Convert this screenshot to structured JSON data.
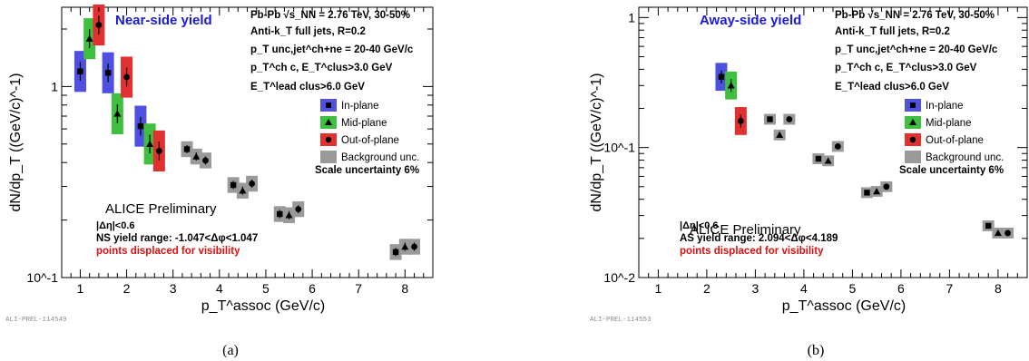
{
  "colors": {
    "in_plane": "#4f4fe0",
    "mid_plane": "#3fbf3f",
    "out_of_plane": "#e03030",
    "background": "#9a9a9a",
    "near_title": "#1a1ad6",
    "away_title": "#1a1ad6",
    "displaced_note": "#e01010"
  },
  "chart_data": [
    {
      "type": "scatter",
      "panel_label": "(a)",
      "title": "Near-side yield",
      "watermark": "ALI-PREL-114549",
      "xlabel": "p_T^assoc (GeV/c)",
      "ylabel": "dN/dp_T ((GeV/c)^-1)",
      "x_range": [
        0.6,
        8.6
      ],
      "y_range": [
        0.1,
        2.6
      ],
      "y_scale": "log",
      "x_ticks": [
        "1",
        "2",
        "3",
        "4",
        "5",
        "6",
        "7",
        "8"
      ],
      "y_ticks": [
        "10^-1",
        "1"
      ],
      "info": {
        "line1": "Pb-Pb √s_NN = 2.76 TeV, 30-50%",
        "line2": "Anti-k_T full jets, R=0.2",
        "line3": "p_T unc,jet^ch+ne = 20-40 GeV/c",
        "line4": "p_T^ch c, E_T^clus>3.0 GeV",
        "line5": "E_T^lead clus>6.0 GeV"
      },
      "legend": [
        "In-plane",
        "Mid-plane",
        "Out-of-plane",
        "Background unc."
      ],
      "scale_uncertainty": "Scale uncertainty 6%",
      "alice_label": "ALICE Preliminary",
      "eta_cut": "|Δη|<0.6",
      "yield_range": "NS yield range: -1.047<Δφ<1.047",
      "displaced_note": "points displaced for visibility",
      "series": [
        {
          "name": "In-plane",
          "x": [
            1.0,
            1.6,
            2.3
          ],
          "y": [
            1.2,
            1.18,
            0.62
          ]
        },
        {
          "name": "Mid-plane",
          "x": [
            1.2,
            1.8,
            2.5
          ],
          "y": [
            1.78,
            0.72,
            0.5
          ]
        },
        {
          "name": "Out-of-plane",
          "x": [
            1.4,
            2.0,
            2.7
          ],
          "y": [
            2.1,
            1.12,
            0.46
          ]
        }
      ],
      "background_points": [
        {
          "x": 3.3,
          "y": 0.47,
          "marker": "square"
        },
        {
          "x": 3.5,
          "y": 0.43,
          "marker": "triangle"
        },
        {
          "x": 3.7,
          "y": 0.41,
          "marker": "circle"
        },
        {
          "x": 4.3,
          "y": 0.305,
          "marker": "square"
        },
        {
          "x": 4.5,
          "y": 0.285,
          "marker": "triangle"
        },
        {
          "x": 4.7,
          "y": 0.31,
          "marker": "circle"
        },
        {
          "x": 5.3,
          "y": 0.215,
          "marker": "square"
        },
        {
          "x": 5.5,
          "y": 0.212,
          "marker": "triangle"
        },
        {
          "x": 5.7,
          "y": 0.228,
          "marker": "circle"
        },
        {
          "x": 7.8,
          "y": 0.136,
          "marker": "square"
        },
        {
          "x": 8.0,
          "y": 0.145,
          "marker": "triangle"
        },
        {
          "x": 8.2,
          "y": 0.145,
          "marker": "circle"
        }
      ]
    },
    {
      "type": "scatter",
      "panel_label": "(b)",
      "title": "Away-side yield",
      "watermark": "ALI-PREL-114553",
      "xlabel": "p_T^assoc (GeV/c)",
      "ylabel": "dN/dp_T ((GeV/c)^-1)",
      "x_range": [
        0.6,
        8.6
      ],
      "y_range": [
        0.01,
        1.2
      ],
      "y_scale": "log",
      "x_ticks": [
        "1",
        "2",
        "3",
        "4",
        "5",
        "6",
        "7",
        "8"
      ],
      "y_ticks": [
        "10^-2",
        "10^-1",
        "1"
      ],
      "info": {
        "line1": "Pb-Pb √s_NN = 2.76 TeV, 30-50%",
        "line2": "Anti-k_T full jets, R=0.2",
        "line3": "p_T unc,jet^ch+ne = 20-40 GeV/c",
        "line4": "p_T^ch c, E_T^clus>3.0 GeV",
        "line5": "E_T^lead clus>6.0 GeV"
      },
      "legend": [
        "In-plane",
        "Mid-plane",
        "Out-of-plane",
        "Background unc."
      ],
      "scale_uncertainty": "Scale uncertainty 6%",
      "alice_label": "ALICE Preliminary",
      "eta_cut": "|Δη|<0.6",
      "yield_range": "AS yield range: 2.094<Δφ<4.189",
      "displaced_note": "points displaced for visibility",
      "series": [
        {
          "name": "In-plane",
          "x": [
            2.3
          ],
          "y": [
            0.35
          ]
        },
        {
          "name": "Mid-plane",
          "x": [
            2.5
          ],
          "y": [
            0.3
          ]
        },
        {
          "name": "Out-of-plane",
          "x": [
            2.7
          ],
          "y": [
            0.16
          ]
        }
      ],
      "background_points": [
        {
          "x": 3.3,
          "y": 0.165,
          "marker": "square"
        },
        {
          "x": 3.5,
          "y": 0.125,
          "marker": "triangle"
        },
        {
          "x": 3.7,
          "y": 0.165,
          "marker": "circle"
        },
        {
          "x": 4.3,
          "y": 0.082,
          "marker": "square"
        },
        {
          "x": 4.5,
          "y": 0.079,
          "marker": "triangle"
        },
        {
          "x": 4.7,
          "y": 0.102,
          "marker": "circle"
        },
        {
          "x": 5.3,
          "y": 0.045,
          "marker": "square"
        },
        {
          "x": 5.5,
          "y": 0.046,
          "marker": "triangle"
        },
        {
          "x": 5.7,
          "y": 0.05,
          "marker": "circle"
        },
        {
          "x": 7.8,
          "y": 0.025,
          "marker": "square"
        },
        {
          "x": 8.0,
          "y": 0.022,
          "marker": "triangle"
        },
        {
          "x": 8.2,
          "y": 0.022,
          "marker": "circle"
        }
      ]
    }
  ]
}
